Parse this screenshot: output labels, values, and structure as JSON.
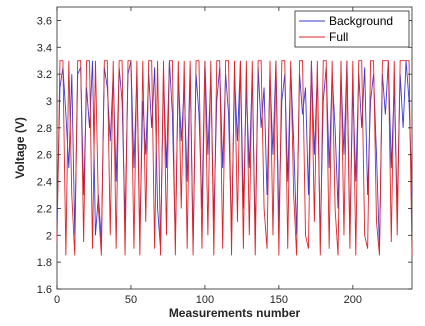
{
  "chart_data": {
    "type": "line",
    "xlabel": "Measurements number",
    "ylabel": "Voltage (V)",
    "xlim": [
      0,
      240
    ],
    "ylim": [
      1.6,
      3.7
    ],
    "xticks": [
      0,
      50,
      100,
      150,
      200
    ],
    "yticks": [
      1.6,
      1.8,
      2,
      2.2,
      2.4,
      2.6,
      2.8,
      3,
      3.2,
      3.4,
      3.6
    ],
    "ytick_labels": [
      "1.6",
      "1.8",
      "2",
      "2.2",
      "2.4",
      "2.6",
      "2.8",
      "3",
      "3.2",
      "3.4",
      "3.6"
    ],
    "grid": false,
    "legend_position": "top-right",
    "series": [
      {
        "name": "Background",
        "color": "#3b3bd9",
        "x": [
          0,
          2,
          4,
          6,
          8,
          10,
          12,
          14,
          16,
          18,
          20,
          22,
          24,
          26,
          28,
          30,
          32,
          34,
          36,
          38,
          40,
          42,
          44,
          46,
          48,
          50,
          52,
          54,
          56,
          58,
          60,
          62,
          64,
          66,
          68,
          70,
          72,
          74,
          76,
          78,
          80,
          82,
          84,
          86,
          88,
          90,
          92,
          94,
          96,
          98,
          100,
          102,
          104,
          106,
          108,
          110,
          112,
          114,
          116,
          118,
          120,
          122,
          124,
          126,
          128,
          130,
          132,
          134,
          136,
          138,
          140,
          142,
          144,
          146,
          148,
          150,
          152,
          154,
          156,
          158,
          160,
          162,
          164,
          166,
          168,
          170,
          172,
          174,
          176,
          178,
          180,
          182,
          184,
          186,
          188,
          190,
          192,
          194,
          196,
          198,
          200,
          202,
          204,
          206,
          208,
          210,
          212,
          214,
          216,
          218,
          220,
          222,
          224,
          226,
          228,
          230,
          232,
          234,
          236,
          238,
          240
        ],
        "values": [
          2.1,
          3.1,
          3.25,
          2.9,
          2.5,
          3.2,
          2.0,
          3.2,
          3.25,
          2.3,
          3.1,
          2.8,
          3.3,
          2.0,
          2.3,
          1.95,
          3.25,
          3.1,
          2.7,
          3.2,
          2.4,
          3.25,
          3.0,
          2.1,
          3.2,
          3.3,
          2.5,
          3.2,
          2.0,
          3.0,
          2.6,
          3.2,
          2.8,
          3.25,
          2.2,
          1.9,
          3.2,
          2.5,
          3.3,
          2.9,
          1.95,
          3.2,
          2.7,
          3.1,
          2.4,
          3.25,
          1.95,
          3.2,
          2.9,
          2.2,
          3.3,
          2.6,
          3.2,
          2.1,
          3.0,
          3.25,
          2.5,
          3.2,
          2.9,
          2.0,
          3.2,
          2.7,
          3.3,
          2.2,
          3.1,
          2.5,
          3.2,
          2.0,
          3.25,
          2.8,
          3.1,
          2.3,
          3.2,
          2.6,
          3.3,
          2.1,
          3.0,
          3.2,
          2.4,
          3.25,
          2.7,
          2.0,
          3.2,
          2.9,
          3.1,
          2.3,
          3.3,
          2.6,
          3.2,
          1.95,
          3.0,
          3.25,
          2.5,
          3.2,
          2.8,
          2.2,
          3.2,
          2.6,
          3.3,
          2.0,
          3.1,
          2.4,
          3.2,
          2.8,
          3.25,
          2.3,
          3.0,
          3.2,
          2.6,
          1.9,
          3.2,
          2.9,
          3.3,
          2.5,
          3.1,
          2.2,
          3.2,
          2.8,
          3.3,
          3.0,
          2.3
        ]
      },
      {
        "name": "Full",
        "color": "#e0242a",
        "x": [
          0,
          2,
          4,
          6,
          8,
          10,
          12,
          14,
          16,
          18,
          20,
          22,
          24,
          26,
          28,
          30,
          32,
          34,
          36,
          38,
          40,
          42,
          44,
          46,
          48,
          50,
          52,
          54,
          56,
          58,
          60,
          62,
          64,
          66,
          68,
          70,
          72,
          74,
          76,
          78,
          80,
          82,
          84,
          86,
          88,
          90,
          92,
          94,
          96,
          98,
          100,
          102,
          104,
          106,
          108,
          110,
          112,
          114,
          116,
          118,
          120,
          122,
          124,
          126,
          128,
          130,
          132,
          134,
          136,
          138,
          140,
          142,
          144,
          146,
          148,
          150,
          152,
          154,
          156,
          158,
          160,
          162,
          164,
          166,
          168,
          170,
          172,
          174,
          176,
          178,
          180,
          182,
          184,
          186,
          188,
          190,
          192,
          194,
          196,
          198,
          200,
          202,
          204,
          206,
          208,
          210,
          212,
          214,
          216,
          218,
          220,
          222,
          224,
          226,
          228,
          230,
          232,
          234,
          236,
          238,
          240
        ],
        "values": [
          1.95,
          3.3,
          3.3,
          1.85,
          3.3,
          2.3,
          1.85,
          3.3,
          3.3,
          1.95,
          3.3,
          3.3,
          1.9,
          3.3,
          2.2,
          1.85,
          3.3,
          3.3,
          2.0,
          3.3,
          1.9,
          3.3,
          3.3,
          1.85,
          3.3,
          3.3,
          1.9,
          3.3,
          1.85,
          3.3,
          2.1,
          3.3,
          3.3,
          1.9,
          3.3,
          1.85,
          3.3,
          2.0,
          3.3,
          3.3,
          1.85,
          3.3,
          2.2,
          3.3,
          1.9,
          3.3,
          1.85,
          3.3,
          3.3,
          1.9,
          3.3,
          2.0,
          3.3,
          1.85,
          3.3,
          3.3,
          1.9,
          3.3,
          3.3,
          1.85,
          3.3,
          2.1,
          3.3,
          1.9,
          3.3,
          2.0,
          3.3,
          1.85,
          3.3,
          3.3,
          2.2,
          1.9,
          3.3,
          2.0,
          3.3,
          1.85,
          3.3,
          3.3,
          1.9,
          3.3,
          2.3,
          1.85,
          3.3,
          3.3,
          2.0,
          1.9,
          3.3,
          2.1,
          3.3,
          1.85,
          3.3,
          3.3,
          1.9,
          3.3,
          2.2,
          1.85,
          3.3,
          2.0,
          3.3,
          1.9,
          3.3,
          1.85,
          3.3,
          3.3,
          2.0,
          1.9,
          3.3,
          3.3,
          2.1,
          1.85,
          3.3,
          3.3,
          3.3,
          1.95,
          3.3,
          2.0,
          3.3,
          3.3,
          3.3,
          3.3,
          1.85
        ]
      }
    ]
  }
}
